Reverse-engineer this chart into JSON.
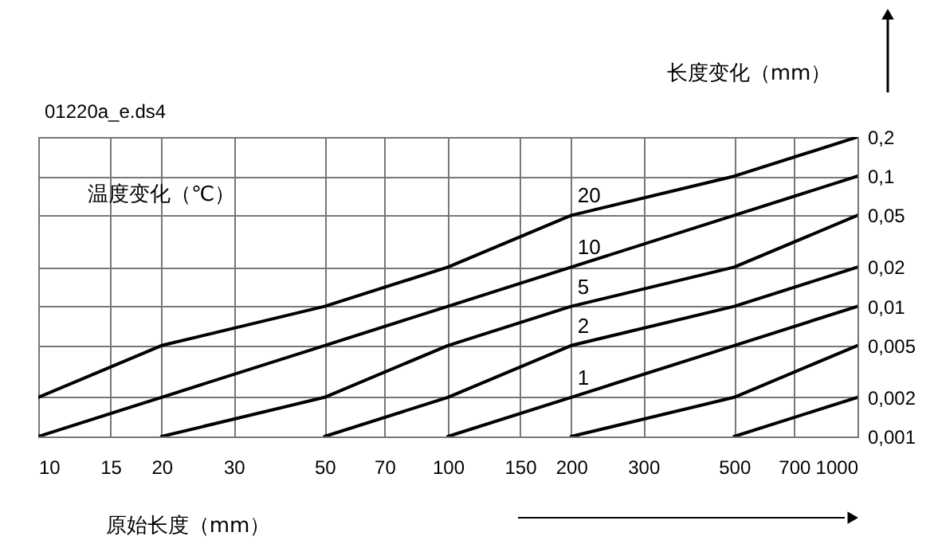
{
  "chart_data": {
    "type": "line",
    "title": "01220a_e.ds4",
    "xlabel": "原始长度（mm）",
    "ylabel": "长度变化（mm）",
    "legend_title": "温度变化（℃）",
    "xlim": [
      10,
      1000
    ],
    "xticks": [
      10,
      15,
      20,
      30,
      50,
      70,
      100,
      150,
      200,
      300,
      500,
      700,
      1000
    ],
    "ylim": [
      0.001,
      0.2
    ],
    "yticks": [
      {
        "value": 0.001,
        "label": "0,001"
      },
      {
        "value": 0.002,
        "label": "0,002"
      },
      {
        "value": 0.005,
        "label": "0,005"
      },
      {
        "value": 0.01,
        "label": "0,01"
      },
      {
        "value": 0.02,
        "label": "0,02"
      },
      {
        "value": 0.05,
        "label": "0,05"
      },
      {
        "value": 0.1,
        "label": "0,1"
      },
      {
        "value": 0.2,
        "label": "0,2"
      }
    ],
    "grid": true,
    "log": "xy",
    "series": [
      {
        "name": "20",
        "color": "#000000",
        "x": [
          10,
          20,
          50,
          100,
          200,
          500,
          1000
        ],
        "values": [
          0.002,
          0.005,
          0.01,
          0.02,
          0.05,
          0.1,
          0.2
        ]
      },
      {
        "name": "10",
        "color": "#000000",
        "x": [
          10,
          20,
          50,
          100,
          200,
          500,
          1000
        ],
        "values": [
          0.001,
          0.002,
          0.005,
          0.01,
          0.02,
          0.05,
          0.1
        ]
      },
      {
        "name": "5",
        "color": "#000000",
        "x": [
          20,
          50,
          100,
          200,
          500,
          1000
        ],
        "values": [
          0.001,
          0.002,
          0.005,
          0.01,
          0.02,
          0.05
        ]
      },
      {
        "name": "2",
        "color": "#000000",
        "x": [
          50,
          100,
          200,
          500,
          1000
        ],
        "values": [
          0.001,
          0.002,
          0.005,
          0.01,
          0.02
        ]
      },
      {
        "name": "1",
        "color": "#000000",
        "x": [
          100,
          200,
          500,
          1000
        ],
        "values": [
          0.001,
          0.002,
          0.005,
          0.01
        ]
      },
      {
        "color": "#000000",
        "x": [
          200,
          500,
          1000
        ],
        "values": [
          0.001,
          0.002,
          0.005
        ]
      },
      {
        "color": "#000000",
        "x": [
          500,
          1000
        ],
        "values": [
          0.001,
          0.002
        ]
      }
    ]
  }
}
